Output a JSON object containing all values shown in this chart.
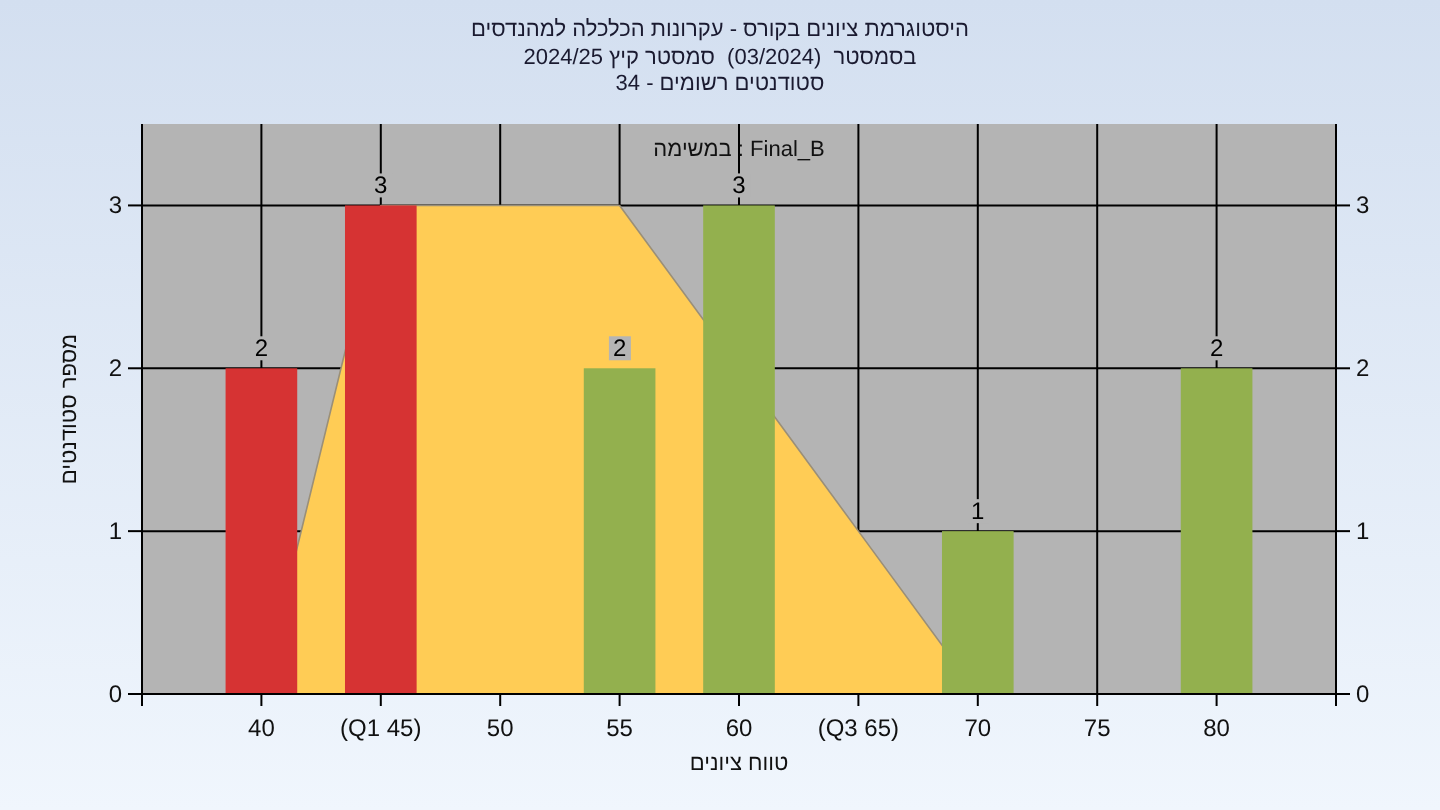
{
  "chart_data": {
    "type": "bar",
    "title": "היסטוגרמת ציונים בקורס - עקרונות הכלכלה למהנדסים",
    "subtitle": "בסמסטר  (03/2024)  סמסטר קיץ 2024/25\nסטודנטים רשומים - 34",
    "xlabel": "טווח ציונים",
    "ylabel": "מספר סטודנטים",
    "annotations": [
      "במשימה : Final_B"
    ],
    "categories": [
      "40",
      "(Q1 45)",
      "50",
      "55",
      "60",
      "(Q3 65)",
      "70",
      "75",
      "80"
    ],
    "series": [
      {
        "type": "area",
        "color": "#ffcc55",
        "values": [
          0,
          3,
          3,
          3,
          null,
          1,
          0,
          null,
          null
        ]
      },
      {
        "colors": [
          "#d63333",
          "#d63333",
          null,
          "#93b04e",
          "#93b04e",
          null,
          "#93b04e",
          null,
          "#93b04e"
        ],
        "values": [
          2,
          3,
          0,
          2,
          3,
          0,
          1,
          0,
          2
        ],
        "value_labels": [
          "2",
          "3",
          null,
          "2",
          "3",
          null,
          "1",
          null,
          "2"
        ]
      }
    ],
    "ylim": [
      0,
      3.5
    ],
    "yticks": [
      0,
      1,
      2,
      3
    ],
    "y2lim": [
      0,
      3.5
    ],
    "y2ticks": [
      0,
      1,
      2,
      3
    ],
    "grid": true
  }
}
